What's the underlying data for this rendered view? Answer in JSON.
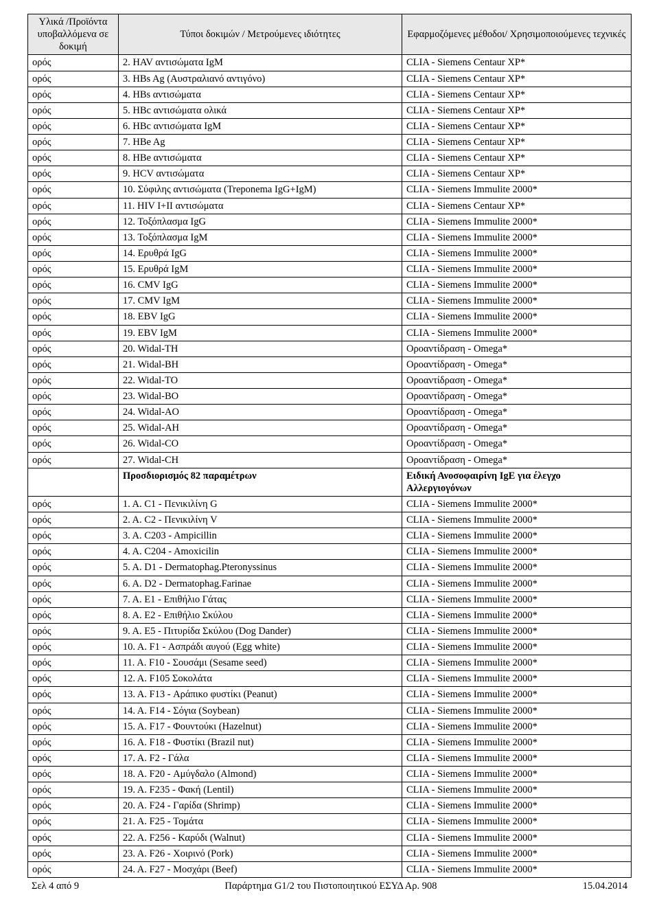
{
  "header": {
    "col1": "Υλικά /Προϊόντα υποβαλλόμενα σε δοκιμή",
    "col2": "Τύποι δοκιμών / Μετρούμενες ιδιότητες",
    "col3": "Εφαρμοζόμενες μέθοδοι/ Χρησιμοποιούμενες τεχνικές"
  },
  "rows": [
    {
      "c1": "ορός",
      "c2": "2. HAV αντισώματα IgM",
      "c3": "CLIA - Siemens Centaur XP*"
    },
    {
      "c1": "ορός",
      "c2": "3. HBs Ag (Αυστραλιανό αντιγόνο)",
      "c3": "CLIA - Siemens Centaur XP*"
    },
    {
      "c1": "ορός",
      "c2": "4. HBs αντισώματα",
      "c3": "CLIA - Siemens Centaur XP*"
    },
    {
      "c1": "ορός",
      "c2": "5. HBc αντισώματα ολικά",
      "c3": "CLIA - Siemens Centaur XP*"
    },
    {
      "c1": "ορός",
      "c2": "6. HBc αντισώματα IgM",
      "c3": "CLIA - Siemens Centaur XP*"
    },
    {
      "c1": "ορός",
      "c2": "7. HBe Ag",
      "c3": "CLIA - Siemens Centaur XP*"
    },
    {
      "c1": "ορός",
      "c2": "8. HBe αντισώματα",
      "c3": "CLIA - Siemens Centaur XP*"
    },
    {
      "c1": "ορός",
      "c2": "9. HCV αντισώματα",
      "c3": "CLIA - Siemens Centaur XP*"
    },
    {
      "c1": "ορός",
      "c2": "10. Σύφιλης αντισώματα (Treponema IgG+IgM)",
      "c3": "CLIA - Siemens Immulite 2000*"
    },
    {
      "c1": "ορός",
      "c2": "11. HIV I+II αντισώματα",
      "c3": "CLIA - Siemens Centaur XP*"
    },
    {
      "c1": "ορός",
      "c2": "12. Τοξόπλασμα IgG",
      "c3": "CLIA - Siemens Immulite 2000*"
    },
    {
      "c1": "ορός",
      "c2": "13. Τοξόπλασμα IgM",
      "c3": "CLIA - Siemens Immulite 2000*"
    },
    {
      "c1": "ορός",
      "c2": "14. Ερυθρά IgG",
      "c3": "CLIA - Siemens Immulite 2000*"
    },
    {
      "c1": "ορός",
      "c2": "15. Ερυθρά IgM",
      "c3": "CLIA - Siemens Immulite 2000*"
    },
    {
      "c1": "ορός",
      "c2": "16. CMV IgG",
      "c3": "CLIA - Siemens Immulite 2000*"
    },
    {
      "c1": "ορός",
      "c2": "17. CMV IgM",
      "c3": "CLIA - Siemens Immulite 2000*"
    },
    {
      "c1": "ορός",
      "c2": "18. EBV IgG",
      "c3": "CLIA - Siemens Immulite 2000*"
    },
    {
      "c1": "ορός",
      "c2": "19. EBV IgM",
      "c3": "CLIA - Siemens Immulite 2000*"
    },
    {
      "c1": "ορός",
      "c2": "20. Widal-TH",
      "c3": "Οροαντίδραση - Omega*"
    },
    {
      "c1": "ορός",
      "c2": "21. Widal-BH",
      "c3": "Οροαντίδραση - Omega*"
    },
    {
      "c1": "ορός",
      "c2": "22. Widal-TO",
      "c3": "Οροαντίδραση - Omega*"
    },
    {
      "c1": "ορός",
      "c2": "23. Widal-BO",
      "c3": "Οροαντίδραση - Omega*"
    },
    {
      "c1": "ορός",
      "c2": "24. Widal-AO",
      "c3": "Οροαντίδραση - Omega*"
    },
    {
      "c1": "ορός",
      "c2": "25. Widal-AH",
      "c3": "Οροαντίδραση - Omega*"
    },
    {
      "c1": "ορός",
      "c2": "26. Widal-CO",
      "c3": "Οροαντίδραση - Omega*"
    },
    {
      "c1": "ορός",
      "c2": "27. Widal-CH",
      "c3": "Οροαντίδραση - Omega*"
    }
  ],
  "section": {
    "c1": "",
    "c2": "Προσδιορισμός 82 παραμέτρων",
    "c3": "Ειδική Ανοσοφαιρίνη IgE για έλεγχο Αλλεργιογόνων"
  },
  "rows2": [
    {
      "c1": "ορός",
      "c2": "1. Α. C1 - Πενικιλίνη G",
      "c3": "CLIA - Siemens Immulite 2000*"
    },
    {
      "c1": "ορός",
      "c2": "2. Α. C2 - Πενικιλίνη V",
      "c3": "CLIA - Siemens Immulite 2000*"
    },
    {
      "c1": "ορός",
      "c2": "3. Α. C203 - Ampicillin",
      "c3": "CLIA - Siemens Immulite 2000*"
    },
    {
      "c1": "ορός",
      "c2": "4. Α. C204 - Amoxicilin",
      "c3": "CLIA - Siemens Immulite 2000*"
    },
    {
      "c1": "ορός",
      "c2": "5. Α. D1 - Dermatophag.Pteronyssinus",
      "c3": "CLIA - Siemens Immulite 2000*"
    },
    {
      "c1": "ορός",
      "c2": "6. Α. D2 - Dermatophag.Farinae",
      "c3": "CLIA - Siemens Immulite 2000*"
    },
    {
      "c1": "ορός",
      "c2": "7. Α. E1 - Επιθήλιο Γάτας",
      "c3": "CLIA - Siemens Immulite 2000*"
    },
    {
      "c1": "ορός",
      "c2": "8. Α. E2 - Επιθήλιο Σκύλου",
      "c3": "CLIA - Siemens Immulite 2000*"
    },
    {
      "c1": "ορός",
      "c2": "9. Α. E5 - Πιτυρίδα Σκύλου (Dog Dander)",
      "c3": "CLIA - Siemens Immulite 2000*"
    },
    {
      "c1": "ορός",
      "c2": "10. Α. F1 - Ασπράδι αυγού (Egg white)",
      "c3": "CLIA - Siemens Immulite 2000*"
    },
    {
      "c1": "ορός",
      "c2": "11. Α. F10 - Σουσάμι (Sesame seed)",
      "c3": "CLIA - Siemens Immulite 2000*"
    },
    {
      "c1": "ορός",
      "c2": "12. Α. F105 Σοκολάτα",
      "c3": "CLIA - Siemens Immulite 2000*"
    },
    {
      "c1": "ορός",
      "c2": "13. Α. F13 - Αράπικο φυστίκι (Peanut)",
      "c3": "CLIA - Siemens Immulite 2000*"
    },
    {
      "c1": "ορός",
      "c2": "14. Α. F14 - Σόγια (Soybean)",
      "c3": "CLIA - Siemens Immulite 2000*"
    },
    {
      "c1": "ορός",
      "c2": "15. Α. F17 - Φουντούκι (Hazelnut)",
      "c3": "CLIA - Siemens Immulite 2000*"
    },
    {
      "c1": "ορός",
      "c2": "16. Α. F18 - Φυστίκι (Brazil nut)",
      "c3": "CLIA - Siemens Immulite 2000*"
    },
    {
      "c1": "ορός",
      "c2": "17. Α. F2 - Γάλα",
      "c3": "CLIA - Siemens Immulite 2000*"
    },
    {
      "c1": "ορός",
      "c2": "18. Α. F20 - Αμύγδαλο (Almond)",
      "c3": "CLIA - Siemens Immulite 2000*"
    },
    {
      "c1": "ορός",
      "c2": "19. Α. F235 - Φακή (Lentil)",
      "c3": "CLIA - Siemens Immulite 2000*"
    },
    {
      "c1": "ορός",
      "c2": "20. Α. F24 - Γαρίδα (Shrimp)",
      "c3": "CLIA - Siemens Immulite 2000*"
    },
    {
      "c1": "ορός",
      "c2": "21. Α. F25 - Τομάτα",
      "c3": "CLIA - Siemens Immulite 2000*"
    },
    {
      "c1": "ορός",
      "c2": "22. Α. F256 - Καρύδι (Walnut)",
      "c3": "CLIA - Siemens Immulite 2000*"
    },
    {
      "c1": "ορός",
      "c2": "23. Α. F26 - Χοιρινό (Pork)",
      "c3": "CLIA - Siemens Immulite 2000*"
    },
    {
      "c1": "ορός",
      "c2": "24. Α. F27 - Μοσχάρι (Beef)",
      "c3": "CLIA - Siemens Immulite 2000*"
    }
  ],
  "footer": {
    "left": "Σελ 4 από 9",
    "center": "Παράρτημα G1/2 του Πιστοποιητικού ΕΣΥΔ Αρ. 908",
    "right": "15.04.2014"
  }
}
